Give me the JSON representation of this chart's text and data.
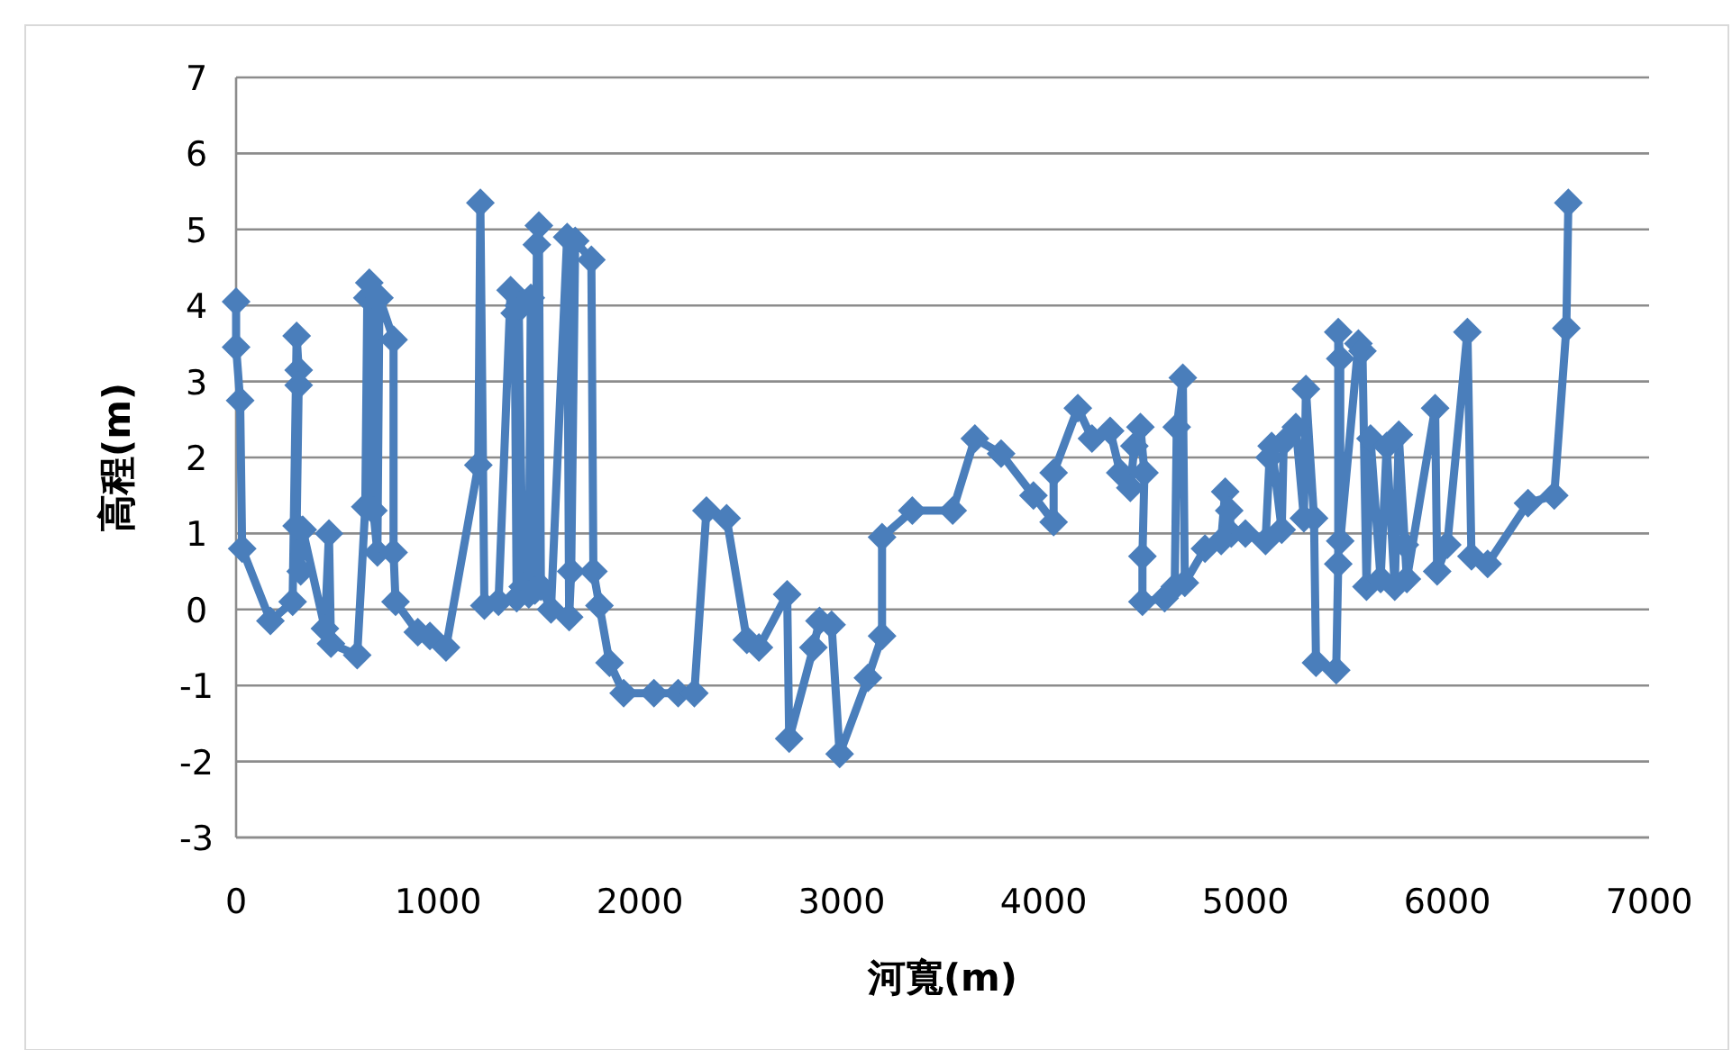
{
  "chart_data": {
    "type": "line",
    "xlabel": "河寬(m)",
    "ylabel": "高程(m)",
    "xlim": [
      0,
      7000
    ],
    "ylim": [
      -3,
      7
    ],
    "xticks": [
      0,
      1000,
      2000,
      3000,
      4000,
      5000,
      6000,
      7000
    ],
    "yticks": [
      -3,
      -2,
      -1,
      0,
      1,
      2,
      3,
      4,
      5,
      6,
      7
    ],
    "grid": "y",
    "marker": "diamond",
    "line_style": "solid",
    "series": [
      {
        "color": "#4a7ebb",
        "x": [
          0,
          0,
          20,
          30,
          170,
          280,
          300,
          310,
          310,
          300,
          320,
          330,
          440,
          460,
          470,
          600,
          640,
          650,
          660,
          670,
          680,
          700,
          710,
          780,
          780,
          790,
          900,
          960,
          1040,
          1200,
          1210,
          1230,
          1300,
          1360,
          1380,
          1390,
          1400,
          1420,
          1450,
          1460,
          1480,
          1490,
          1500,
          1510,
          1560,
          1640,
          1650,
          1660,
          1680,
          1760,
          1770,
          1800,
          1850,
          1920,
          2070,
          2190,
          2270,
          2330,
          2430,
          2530,
          2590,
          2730,
          2740,
          2860,
          2890,
          2950,
          2990,
          3130,
          3200,
          3200,
          3350,
          3550,
          3660,
          3790,
          3950,
          4050,
          4050,
          4170,
          4240,
          4330,
          4380,
          4430,
          4450,
          4480,
          4500,
          4490,
          4490,
          4600,
          4650,
          4660,
          4690,
          4700,
          4800,
          4880,
          4900,
          4920,
          4930,
          5000,
          5100,
          5120,
          5130,
          5180,
          5190,
          5250,
          5290,
          5300,
          5340,
          5350,
          5450,
          5460,
          5460,
          5470,
          5470,
          5560,
          5580,
          5600,
          5620,
          5670,
          5700,
          5740,
          5760,
          5790,
          5800,
          5940,
          5950,
          6000,
          6100,
          6120,
          6200,
          6400,
          6530,
          6590,
          6600
        ],
        "values": [
          4.05,
          3.45,
          2.75,
          0.8,
          -0.15,
          0.1,
          3.6,
          3.15,
          2.95,
          1.1,
          0.5,
          1.05,
          -0.25,
          1.0,
          -0.45,
          -0.6,
          1.35,
          4.1,
          4.3,
          4.15,
          1.3,
          0.75,
          4.1,
          3.55,
          0.75,
          0.1,
          -0.3,
          -0.35,
          -0.5,
          1.9,
          5.35,
          0.05,
          0.1,
          4.2,
          3.9,
          0.15,
          4.0,
          0.3,
          0.2,
          4.1,
          0.25,
          4.8,
          5.05,
          0.3,
          0,
          4.9,
          -0.1,
          0.5,
          4.85,
          4.6,
          0.5,
          0.05,
          -0.7,
          -1.1,
          -1.1,
          -1.1,
          -1.1,
          1.3,
          1.2,
          -0.4,
          -0.5,
          0.2,
          -1.7,
          -0.5,
          -0.15,
          -0.2,
          -1.9,
          -0.9,
          -0.35,
          0.95,
          1.3,
          1.3,
          2.25,
          2.05,
          1.5,
          1.15,
          1.8,
          2.65,
          2.25,
          2.35,
          1.8,
          1.6,
          2.15,
          2.4,
          1.8,
          0.7,
          0.1,
          0.15,
          0.3,
          2.4,
          3.05,
          0.35,
          0.8,
          0.9,
          1.55,
          1.3,
          1.0,
          1.0,
          0.9,
          2.0,
          2.15,
          1.05,
          2.2,
          2.4,
          1.2,
          2.9,
          1.2,
          -0.7,
          -0.8,
          0.6,
          3.65,
          3.3,
          0.9,
          3.5,
          3.4,
          0.3,
          2.25,
          0.4,
          2.15,
          0.3,
          2.3,
          0.85,
          0.4,
          2.65,
          0.5,
          0.85,
          3.65,
          0.7,
          0.6,
          1.4,
          1.5,
          3.7,
          5.35
        ]
      }
    ]
  }
}
